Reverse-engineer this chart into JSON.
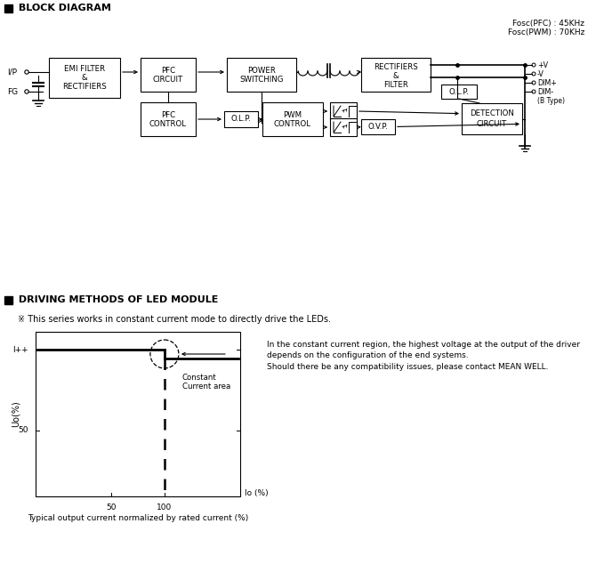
{
  "bg_color": "#ffffff",
  "fig_width": 6.7,
  "fig_height": 6.34,
  "section1_title": "BLOCK DIAGRAM",
  "section2_title": "DRIVING METHODS OF LED MODULE",
  "fosc_text": "Fosc(PFC) : 45KHz\nFosc(PWM) : 70KHz",
  "note_text": "※ This series works in constant current mode to directly drive the LEDs.",
  "graph_note1": "In the constant current region, the highest voltage at the output of the driver",
  "graph_note2": "depends on the configuration of the end systems.",
  "graph_note3": "Should there be any compatibility issues, please contact MEAN WELL.",
  "xlabel": "Io (%)",
  "ylabel": "Uo(%)",
  "x_label50": "50",
  "x_label100": "100",
  "y_label50": "50",
  "y_labelmax": "I++",
  "constant_area_label": "Constant\nCurrent area",
  "bottom_caption": "Typical output current normalized by rated current (%)"
}
